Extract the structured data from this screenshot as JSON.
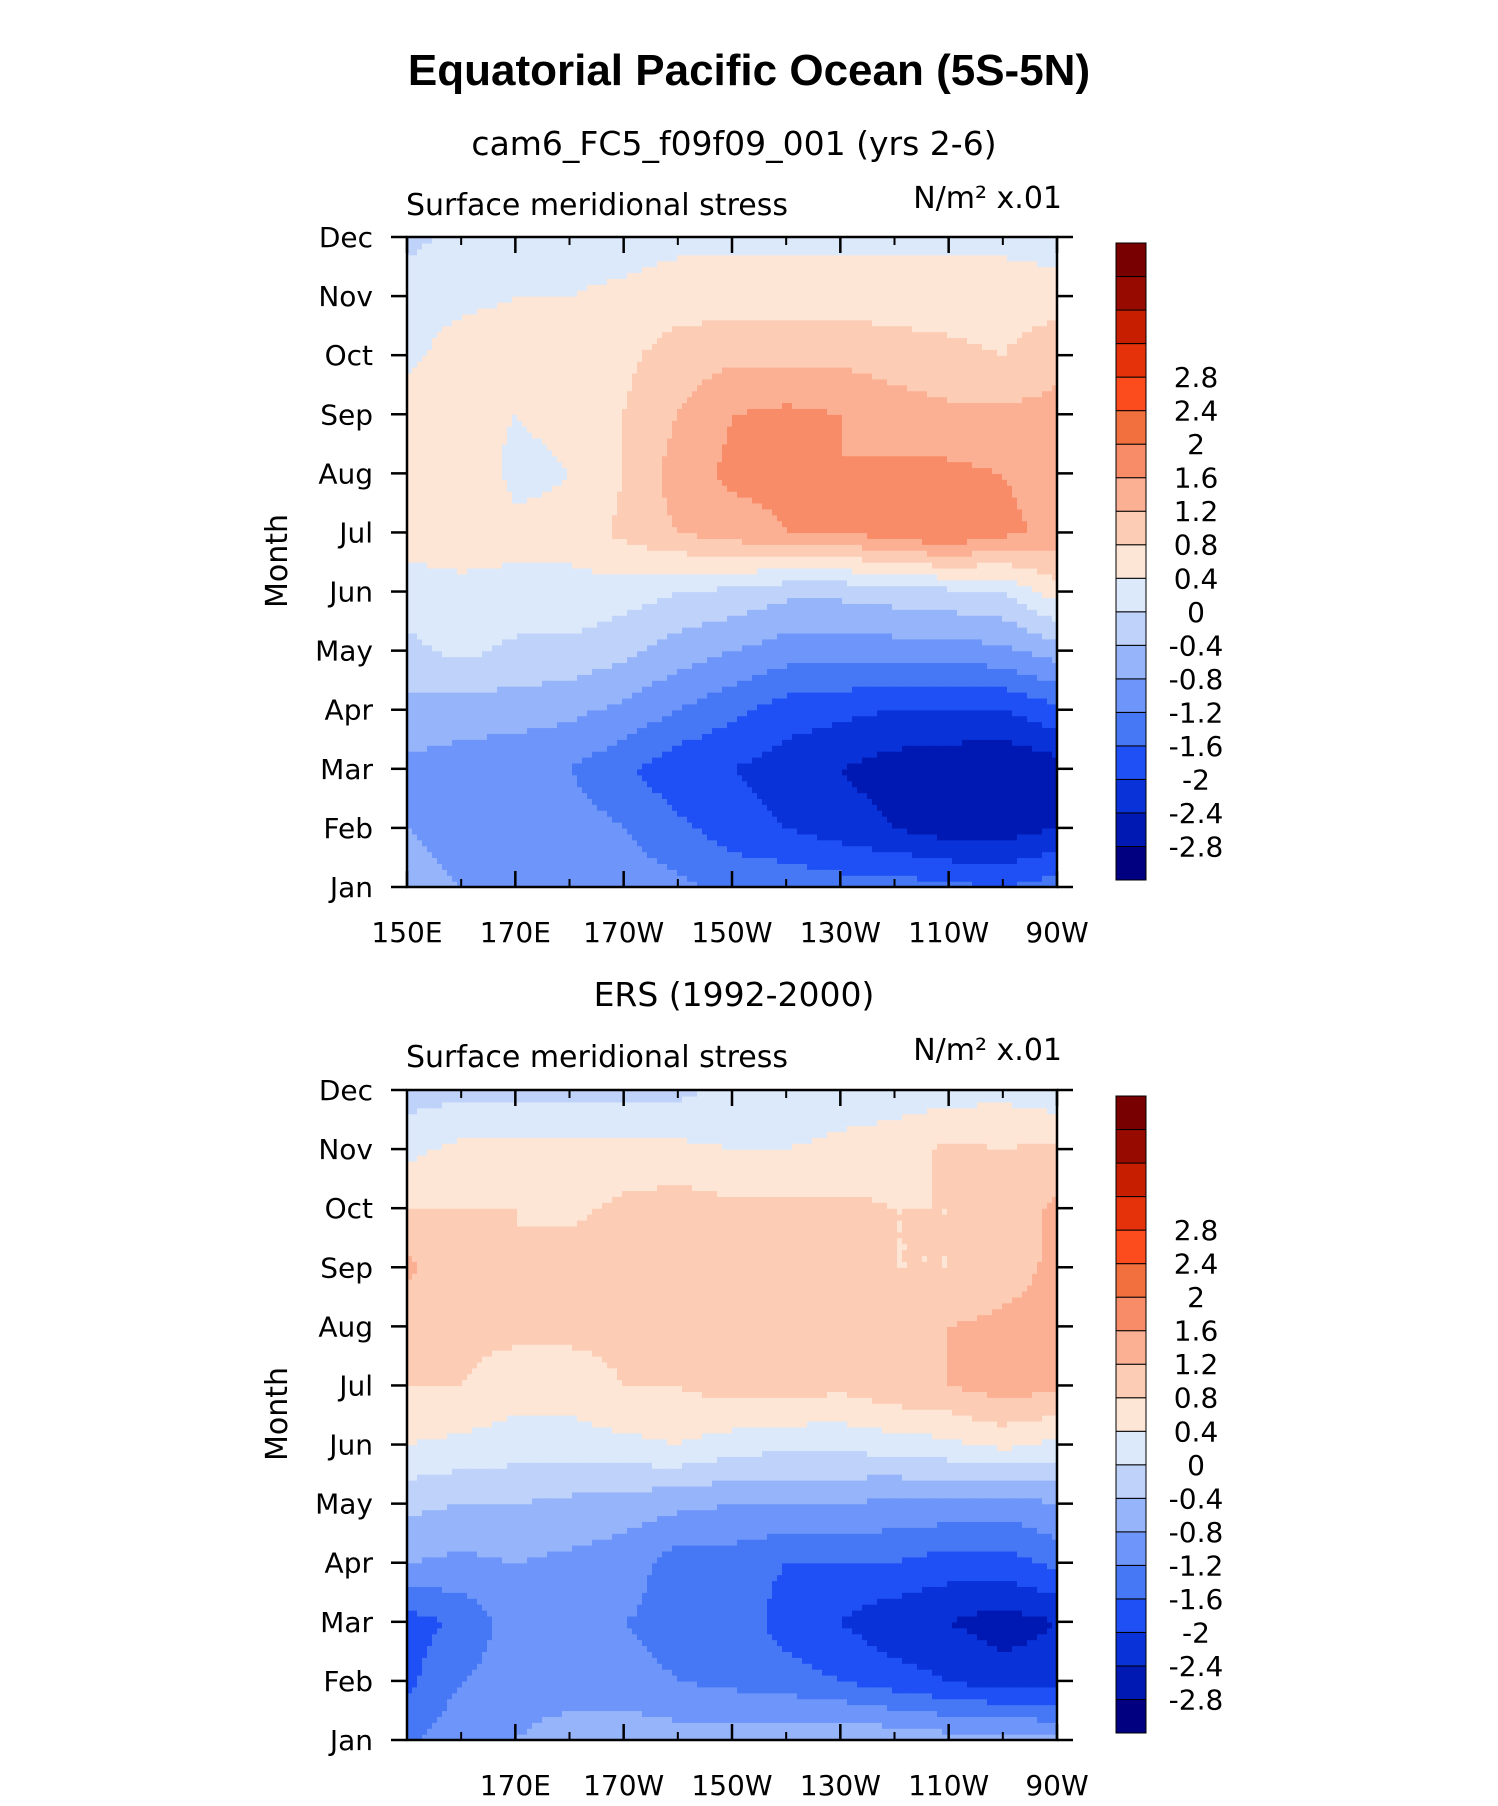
{
  "figure": {
    "title": "Equatorial Pacific Ocean (5S-5N)"
  },
  "colorbar": {
    "colors": [
      "#000080",
      "#0019b3",
      "#0a32d9",
      "#1e50f5",
      "#4678f5",
      "#6e96fa",
      "#96b4fa",
      "#bed2fa",
      "#dce9fa",
      "#fde6d6",
      "#fcccb4",
      "#fbb094",
      "#f88c68",
      "#f2703e",
      "#fc4c1e",
      "#e6320a",
      "#c81e00",
      "#960a00",
      "#780000"
    ],
    "levels": [
      -2.8,
      -2.4,
      -2,
      -1.6,
      -1.2,
      -0.8,
      -0.4,
      0,
      0.4,
      0.8,
      1.2,
      1.6,
      2,
      2.4,
      2.8
    ],
    "labels": [
      "-2.8",
      "-2.4",
      "-2",
      "-1.6",
      "-1.2",
      "-0.8",
      "-0.4",
      "0",
      "0.4",
      "0.8",
      "1.2",
      "1.6",
      "2",
      "2.4",
      "2.8"
    ]
  },
  "chart_data": [
    {
      "type": "heatmap",
      "subtitle": "cam6_FC5_f09f09_001 (yrs 2-6)",
      "left_label": "Surface meridional stress",
      "right_label": "N/m² x.01",
      "ylabel": "Month",
      "xlabel": "",
      "x_ticks": [
        "150E",
        "170E",
        "170W",
        "150W",
        "130W",
        "110W",
        "90W"
      ],
      "x_tick_lon": [
        150,
        170,
        190,
        210,
        230,
        250,
        270
      ],
      "y_ticks": [
        "Jan",
        "Feb",
        "Mar",
        "Apr",
        "May",
        "Jun",
        "Jul",
        "Aug",
        "Sep",
        "Oct",
        "Nov",
        "Dec"
      ],
      "xlim": [
        150,
        270
      ],
      "ylim": [
        1,
        12
      ],
      "z_lon": [
        150,
        160,
        170,
        180,
        190,
        200,
        210,
        220,
        230,
        240,
        250,
        260,
        270
      ],
      "z_month": [
        1,
        2,
        3,
        4,
        5,
        6,
        7,
        8,
        9,
        10,
        11,
        12
      ],
      "z": [
        [
          -0.6,
          -0.8,
          -0.8,
          -0.8,
          -1.0,
          -1.1,
          -1.3,
          -1.3,
          -1.4,
          -1.4,
          -1.5,
          -1.6,
          -1.4
        ],
        [
          -0.8,
          -1.0,
          -1.0,
          -1.0,
          -1.2,
          -1.5,
          -1.8,
          -2.0,
          -2.2,
          -2.4,
          -2.6,
          -2.6,
          -2.4
        ],
        [
          -0.9,
          -1.0,
          -1.1,
          -1.2,
          -1.5,
          -1.9,
          -2.0,
          -2.2,
          -2.4,
          -2.6,
          -2.7,
          -2.8,
          -2.6
        ],
        [
          -0.5,
          -0.6,
          -0.6,
          -0.7,
          -0.9,
          -1.2,
          -1.5,
          -1.8,
          -1.9,
          -2.0,
          -2.0,
          -2.0,
          -1.7
        ],
        [
          -0.1,
          0.1,
          -0.1,
          -0.1,
          -0.3,
          -0.6,
          -0.8,
          -1.0,
          -1.0,
          -1.0,
          -1.0,
          -0.9,
          -0.6
        ],
        [
          0.2,
          0.3,
          0.3,
          0.3,
          0.2,
          0.0,
          -0.1,
          -0.3,
          -0.3,
          -0.2,
          -0.1,
          0.0,
          0.6
        ],
        [
          0.6,
          0.6,
          0.5,
          0.5,
          0.9,
          1.2,
          1.4,
          1.6,
          1.6,
          1.8,
          2.0,
          1.7,
          1.5
        ],
        [
          0.8,
          0.7,
          0.3,
          0.4,
          0.8,
          1.4,
          1.7,
          1.7,
          1.6,
          1.7,
          1.7,
          1.6,
          1.4
        ],
        [
          0.6,
          0.5,
          0.4,
          0.5,
          0.8,
          1.2,
          1.6,
          1.7,
          1.6,
          1.4,
          1.3,
          1.3,
          1.3
        ],
        [
          0.3,
          0.6,
          0.6,
          0.6,
          0.7,
          1.0,
          1.1,
          1.1,
          1.1,
          1.0,
          0.9,
          0.8,
          1.1
        ],
        [
          0.2,
          0.3,
          0.4,
          0.4,
          0.5,
          0.6,
          0.6,
          0.6,
          0.6,
          0.6,
          0.6,
          0.6,
          0.6
        ],
        [
          -0.1,
          0.1,
          0.2,
          0.2,
          0.2,
          0.3,
          0.3,
          0.3,
          0.3,
          0.3,
          0.3,
          0.3,
          0.2
        ]
      ]
    },
    {
      "type": "heatmap",
      "subtitle": "ERS (1992-2000)",
      "left_label": "Surface meridional stress",
      "right_label": "N/m² x.01",
      "ylabel": "Month",
      "xlabel": "",
      "x_ticks": [
        "170E",
        "170W",
        "150W",
        "130W",
        "110W",
        "90W"
      ],
      "x_tick_lon": [
        170,
        190,
        210,
        230,
        250,
        270
      ],
      "y_ticks": [
        "Jan",
        "Feb",
        "Mar",
        "Apr",
        "May",
        "Jun",
        "Jul",
        "Aug",
        "Sep",
        "Oct",
        "Nov",
        "Dec"
      ],
      "xlim": [
        150,
        270
      ],
      "ylim": [
        1,
        12
      ],
      "z_lon": [
        150,
        160,
        170,
        180,
        190,
        200,
        210,
        220,
        230,
        240,
        250,
        260,
        270
      ],
      "z_month": [
        1,
        2,
        3,
        4,
        5,
        6,
        7,
        8,
        9,
        10,
        11,
        12
      ],
      "z": [
        [
          -1.3,
          -0.9,
          -0.8,
          -0.6,
          -0.5,
          -0.6,
          -0.6,
          -0.5,
          -0.4,
          -0.5,
          -0.6,
          -0.6,
          -0.7
        ],
        [
          -1.7,
          -1.2,
          -1.0,
          -1.0,
          -1.1,
          -1.2,
          -1.3,
          -1.4,
          -1.6,
          -1.8,
          -2.0,
          -2.2,
          -2.2
        ],
        [
          -1.8,
          -1.5,
          -1.0,
          -1.1,
          -1.2,
          -1.3,
          -1.3,
          -1.8,
          -2.0,
          -2.3,
          -2.4,
          -2.6,
          -2.4
        ],
        [
          -0.8,
          -0.9,
          -0.8,
          -0.9,
          -1.0,
          -1.4,
          -1.4,
          -1.6,
          -1.6,
          -1.6,
          -1.8,
          -1.8,
          -1.5
        ],
        [
          -0.3,
          -0.4,
          -0.4,
          -0.5,
          -0.6,
          -0.7,
          -0.8,
          -0.8,
          -0.8,
          -0.9,
          -0.9,
          -1.0,
          -0.8
        ],
        [
          0.4,
          0.3,
          0.2,
          0.2,
          0.3,
          0.4,
          0.2,
          0.1,
          0.1,
          0.2,
          0.3,
          0.5,
          0.3
        ],
        [
          0.8,
          0.8,
          0.6,
          0.6,
          0.8,
          0.8,
          1.0,
          1.0,
          0.9,
          1.1,
          1.2,
          1.4,
          1.3
        ],
        [
          0.9,
          0.9,
          0.9,
          0.9,
          0.9,
          1.0,
          1.0,
          1.1,
          1.0,
          0.9,
          1.2,
          1.3,
          1.4
        ],
        [
          1.3,
          0.9,
          0.8,
          1.0,
          1.0,
          0.8,
          1.0,
          1.0,
          1.0,
          0.8,
          0.8,
          1.0,
          1.3
        ],
        [
          0.8,
          0.8,
          0.8,
          0.7,
          0.9,
          1.0,
          0.9,
          0.9,
          0.9,
          0.8,
          0.8,
          0.9,
          1.3
        ],
        [
          0.3,
          0.5,
          0.6,
          0.5,
          0.5,
          0.5,
          0.4,
          0.4,
          0.5,
          0.6,
          0.9,
          0.8,
          0.9
        ],
        [
          -0.2,
          -0.1,
          -0.2,
          -0.1,
          -0.1,
          -0.1,
          0.1,
          0.1,
          0.2,
          0.2,
          0.2,
          0.3,
          0.1
        ]
      ]
    }
  ]
}
